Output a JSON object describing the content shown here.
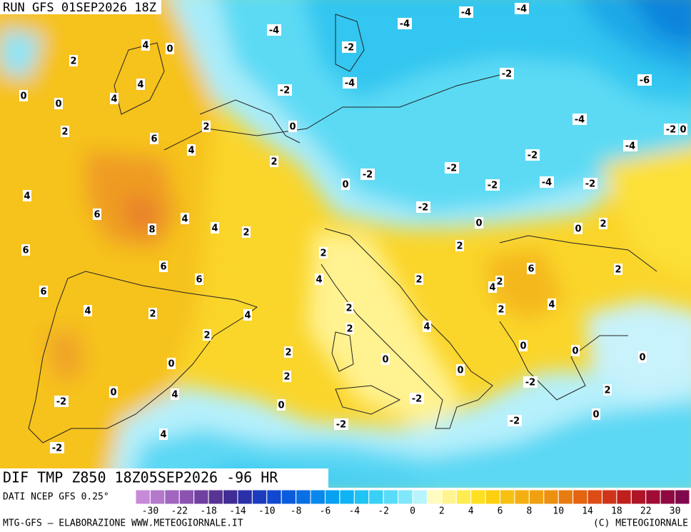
{
  "header": {
    "run": "RUN GFS 01SEP2026 18Z"
  },
  "map": {
    "title": "DIF TMP Z850 18Z05SEP2026 -96 HR",
    "contour_labels": [
      -4,
      -2,
      -4,
      -4,
      -4,
      -4,
      -2,
      -2,
      -6,
      -4,
      -2,
      0,
      -4,
      -2,
      -2,
      -2,
      -2,
      -4,
      -2,
      -2,
      0,
      0,
      0,
      0,
      2,
      4,
      0,
      2,
      4,
      0,
      0,
      4,
      2,
      2,
      6,
      4,
      2,
      4,
      6,
      4,
      4,
      2,
      8,
      6,
      6,
      6,
      6,
      4,
      2,
      4,
      2,
      4,
      2,
      6,
      2,
      2,
      2,
      4,
      2,
      2,
      2,
      4,
      4,
      2,
      2,
      0,
      0,
      0,
      0,
      0,
      2,
      0,
      -2,
      2,
      0,
      4,
      -2,
      0,
      -2,
      0,
      -2,
      -2,
      4,
      -2
    ]
  },
  "footer": {
    "source": "DATI NCEP GFS 0.25°",
    "credit": "MTG-GFS — ELABORAZIONE WWW.METEOGIORNALE.IT",
    "copyright": "(C) METEOGIORNALE",
    "colorbar": {
      "labels": [
        -30,
        -22,
        -18,
        -14,
        -10,
        -8,
        -6,
        -4,
        -2,
        0,
        2,
        4,
        6,
        8,
        10,
        14,
        18,
        22,
        30
      ],
      "colors": [
        "#c88ad8",
        "#b478cc",
        "#a066c0",
        "#8c52b0",
        "#7040a0",
        "#583494",
        "#402c94",
        "#2a30a8",
        "#1c3cc0",
        "#1048d0",
        "#0a5cdc",
        "#0870e4",
        "#0888ec",
        "#08a0f0",
        "#10b4f4",
        "#20c4f4",
        "#38d0f6",
        "#58dcf8",
        "#80e8fa",
        "#b8f4fc",
        "#fffcc0",
        "#fff490",
        "#ffec50",
        "#ffe020",
        "#fcd010",
        "#f8c010",
        "#f4b010",
        "#f0a010",
        "#ec9010",
        "#e87c10",
        "#e46410",
        "#dc4c14",
        "#d03418",
        "#c0201c",
        "#b01428",
        "#a00c34",
        "#900840",
        "#80084c"
      ]
    }
  }
}
